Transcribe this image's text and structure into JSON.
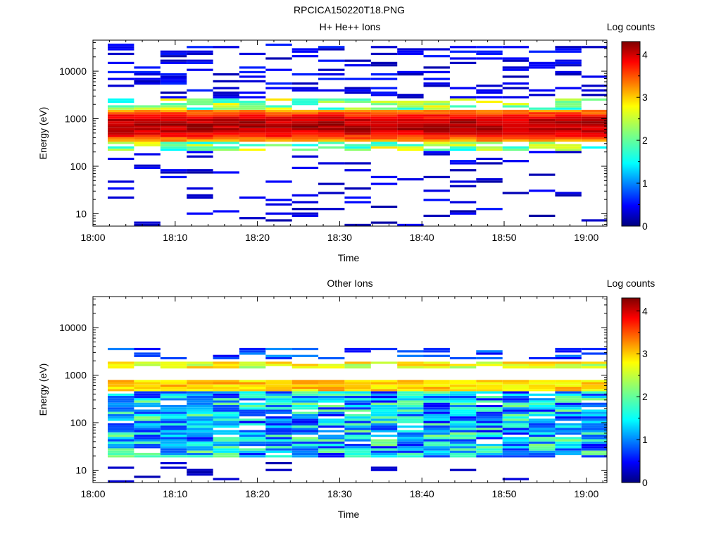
{
  "figure_title": "RPCICA150220T18.PNG",
  "colors": {
    "jet": [
      "#00007f",
      "#0000ff",
      "#007fff",
      "#00ffff",
      "#7fff7f",
      "#ffff00",
      "#ff7f00",
      "#ff0000",
      "#7f0000"
    ]
  },
  "chart_data": [
    {
      "type": "heatmap",
      "title": "H+ He++ Ions",
      "xlabel": "Time",
      "ylabel": "Energy (eV)",
      "x_ticks": [
        "18:00",
        "18:10",
        "18:20",
        "18:30",
        "18:40",
        "18:50",
        "19:00"
      ],
      "y_ticks": [
        "10",
        "100",
        "1000",
        "10000"
      ],
      "y_scale": "log",
      "ylim": [
        5.5,
        45000
      ],
      "xlim_minutes": [
        0,
        62.5
      ],
      "colorbar": {
        "label": "Log counts",
        "ticks": [
          "0",
          "1",
          "2",
          "3",
          "4"
        ],
        "range": [
          0,
          4.3
        ]
      },
      "time_bins_start_min": [
        1.8,
        5.0,
        8.2,
        11.4,
        14.6,
        17.8,
        21.0,
        24.2,
        27.4,
        30.6,
        33.8,
        37.0,
        40.2,
        43.4,
        46.6,
        49.8,
        53.0,
        56.2,
        59.4
      ],
      "bin_width_min": 3.2,
      "description": "Intense band (log counts up to ~4.3) centered near 600-800 eV across all times; sparse low-count patches up to 40000 eV and down to 10 eV"
    },
    {
      "type": "heatmap",
      "title": "Other Ions",
      "xlabel": "Time",
      "ylabel": "Energy (eV)",
      "x_ticks": [
        "18:00",
        "18:10",
        "18:20",
        "18:30",
        "18:40",
        "18:50",
        "19:00"
      ],
      "y_ticks": [
        "10",
        "100",
        "1000",
        "10000"
      ],
      "y_scale": "log",
      "ylim": [
        5.5,
        45000
      ],
      "xlim_minutes": [
        0,
        62.5
      ],
      "colorbar": {
        "label": "Log counts",
        "ticks": [
          "0",
          "1",
          "2",
          "3",
          "4"
        ],
        "range": [
          0,
          4.3
        ]
      },
      "time_bins_start_min": [
        1.8,
        5.0,
        8.2,
        11.4,
        14.6,
        17.8,
        21.0,
        24.2,
        27.4,
        30.6,
        33.8,
        37.0,
        40.2,
        43.4,
        46.6,
        49.8,
        53.0,
        56.2,
        59.4
      ],
      "bin_width_min": 3.2,
      "description": "Moderate counts (log ~2.5-3) near 600 eV and 1500 eV; broad 1-2 level population from 15 eV to 400 eV"
    }
  ]
}
